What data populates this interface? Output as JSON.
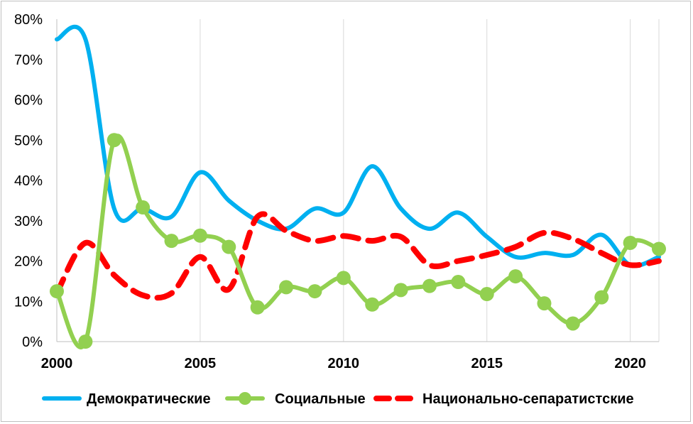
{
  "chart_data": {
    "type": "line",
    "x": [
      2000,
      2001,
      2002,
      2003,
      2004,
      2005,
      2006,
      2007,
      2008,
      2009,
      2010,
      2011,
      2012,
      2013,
      2014,
      2015,
      2016,
      2017,
      2018,
      2019,
      2020,
      2021
    ],
    "xlim": [
      2000,
      2021
    ],
    "ylim": [
      0,
      0.8
    ],
    "x_ticks": [
      "2000",
      "2005",
      "2010",
      "2015",
      "2020"
    ],
    "y_ticks": [
      "0%",
      "10%",
      "20%",
      "30%",
      "40%",
      "50%",
      "60%",
      "70%",
      "80%"
    ],
    "grid": "vertical",
    "legend_position": "bottom",
    "series": [
      {
        "name": "Демократические",
        "color": "#00B0F0",
        "style": "solid",
        "markers": false,
        "values": [
          0.75,
          0.75,
          0.33,
          0.33,
          0.31,
          0.42,
          0.35,
          0.3,
          0.28,
          0.33,
          0.32,
          0.435,
          0.33,
          0.28,
          0.32,
          0.26,
          0.21,
          0.22,
          0.215,
          0.265,
          0.19,
          0.21
        ]
      },
      {
        "name": "Социальные",
        "color": "#92D050",
        "style": "solid",
        "markers": true,
        "values": [
          0.125,
          0.0,
          0.5,
          0.333,
          0.25,
          0.263,
          0.235,
          0.085,
          0.135,
          0.125,
          0.158,
          0.092,
          0.128,
          0.138,
          0.148,
          0.118,
          0.162,
          0.095,
          0.045,
          0.11,
          0.245,
          0.23
        ]
      },
      {
        "name": "Национально-сепаратистские",
        "color": "#FF0000",
        "style": "dashed",
        "markers": false,
        "values": [
          0.12,
          0.245,
          0.165,
          0.115,
          0.12,
          0.21,
          0.13,
          0.31,
          0.275,
          0.25,
          0.262,
          0.25,
          0.26,
          0.19,
          0.2,
          0.215,
          0.235,
          0.27,
          0.255,
          0.22,
          0.19,
          0.2
        ]
      }
    ]
  }
}
